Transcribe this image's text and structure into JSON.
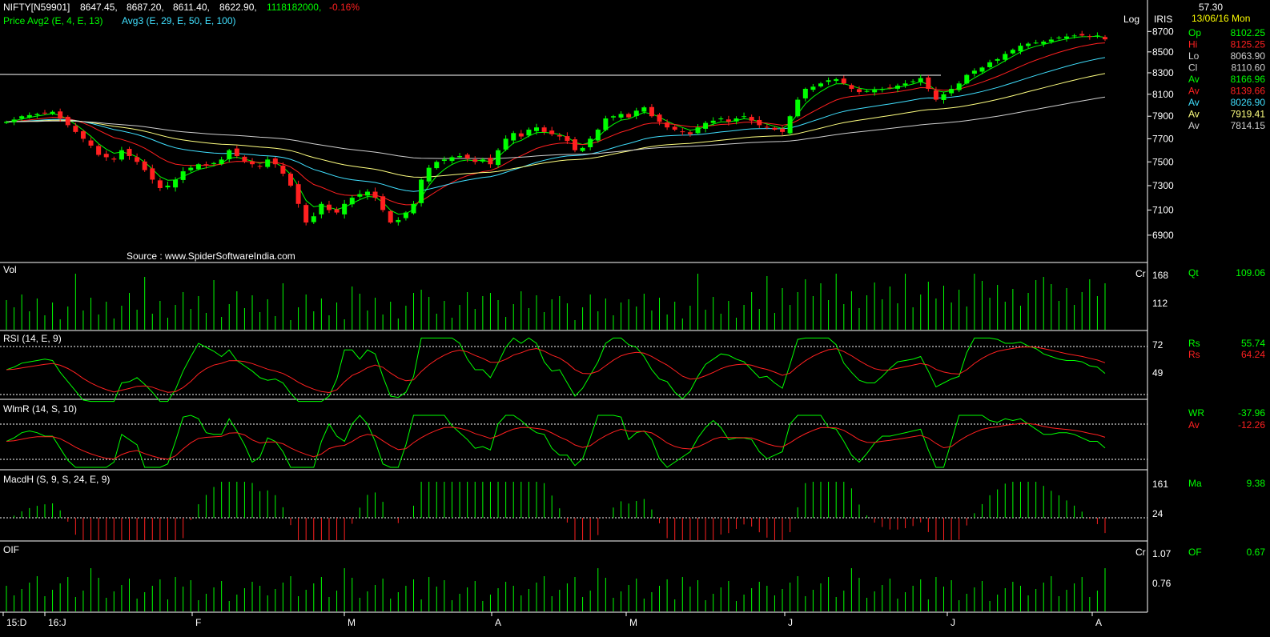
{
  "header": {
    "symbol": "NIFTY[N59901]",
    "open": "8647.45,",
    "high": "8687.20,",
    "low": "8611.40,",
    "close": "8622.90,",
    "volume": "1118182000,",
    "change": "-0.16%",
    "line2_prefix": "Price Avg2 (E, 4, E, 13)",
    "line2_suffix": "Avg3 (E, 29, E, 50, E, 100)",
    "log_label": "Log",
    "iris_label": "IRIS",
    "source": "Source : www.SpiderSoftwareIndia.com"
  },
  "sidebar": {
    "top_value": "57.30",
    "date": "13/06/16 Mon",
    "rows": [
      {
        "label": "Op",
        "value": "8102.25",
        "color": "#00ff00"
      },
      {
        "label": "Hi",
        "value": "8125.25",
        "color": "#ff2020"
      },
      {
        "label": "Lo",
        "value": "8063.90",
        "color": "#cfcfcf"
      },
      {
        "label": "Cl",
        "value": "8110.60",
        "color": "#cfcfcf"
      },
      {
        "label": "Av",
        "value": "8166.96",
        "color": "#00ff00"
      },
      {
        "label": "Av",
        "value": "8139.66",
        "color": "#ff2020"
      },
      {
        "label": "Av",
        "value": "8026.90",
        "color": "#40e0ff"
      },
      {
        "label": "Av",
        "value": "7919.41",
        "color": "#ffff80"
      },
      {
        "label": "Av",
        "value": "7814.15",
        "color": "#cfcfcf"
      }
    ],
    "vol": {
      "label": "Qt",
      "value": "109.06"
    },
    "rsi": [
      {
        "label": "Rs",
        "value": "55.74",
        "color": "#00ff00"
      },
      {
        "label": "Rs",
        "value": "64.24",
        "color": "#ff2020"
      }
    ],
    "wr": [
      {
        "label": "WR",
        "value": "-37.96",
        "color": "#00ff00"
      },
      {
        "label": "Av",
        "value": "-12.26",
        "color": "#ff2020"
      }
    ],
    "macd": {
      "label": "Ma",
      "value": "9.38"
    },
    "oif": {
      "label": "OF",
      "value": "0.67"
    }
  },
  "chart_data": {
    "type": "candlestick",
    "price_axis": {
      "ticks": [
        "8700",
        "8500",
        "8300",
        "8100",
        "7900",
        "7700",
        "7500",
        "7300",
        "7100",
        "6900"
      ],
      "scale": "log",
      "range": [
        6750,
        8750
      ]
    },
    "x_labels": [
      "15:D",
      "16:J",
      "F",
      "M",
      "A",
      "M",
      "J",
      "J",
      "A"
    ],
    "ohlc_closes": [
      7850,
      7870,
      7900,
      7910,
      7920,
      7930,
      7940,
      7880,
      7820,
      7760,
      7700,
      7640,
      7560,
      7540,
      7520,
      7600,
      7550,
      7500,
      7430,
      7350,
      7280,
      7300,
      7350,
      7420,
      7450,
      7480,
      7470,
      7490,
      7520,
      7600,
      7550,
      7500,
      7480,
      7460,
      7520,
      7480,
      7400,
      7300,
      7150,
      7000,
      7050,
      7150,
      7100,
      7080,
      7150,
      7200,
      7230,
      7250,
      7200,
      7100,
      7000,
      7020,
      7080,
      7150,
      7350,
      7450,
      7500,
      7520,
      7540,
      7550,
      7530,
      7500,
      7520,
      7480,
      7600,
      7700,
      7750,
      7720,
      7780,
      7800,
      7760,
      7740,
      7720,
      7680,
      7600,
      7620,
      7700,
      7780,
      7880,
      7900,
      7920,
      7890,
      7950,
      7980,
      7900,
      7850,
      7800,
      7780,
      7760,
      7740,
      7800,
      7840,
      7860,
      7880,
      7850,
      7880,
      7900,
      7860,
      7820,
      7800,
      7780,
      7760,
      7900,
      8050,
      8150,
      8170,
      8200,
      8230,
      8240,
      8200,
      8150,
      8120,
      8130,
      8140,
      8150,
      8160,
      8180,
      8200,
      8220,
      8250,
      8150,
      8050,
      8100,
      8150,
      8200,
      8280,
      8320,
      8350,
      8400,
      8430,
      8480,
      8520,
      8560,
      8580,
      8590,
      8600,
      8620,
      8640,
      8650,
      8660,
      8660,
      8650,
      8660,
      8622
    ],
    "volume_axis": {
      "ticks": [
        "168",
        "112"
      ],
      "unit": "Cr"
    },
    "rsi": {
      "name": "RSI (14, E, 9)",
      "ticks": [
        "72",
        "49"
      ]
    },
    "williams_r": {
      "name": "WlmR (14, S, 10)"
    },
    "macd": {
      "name": "MacdH (S, 9, S, 24, E, 9)",
      "ticks": [
        "161",
        "24"
      ]
    },
    "oif": {
      "name": "OIF",
      "ticks": [
        "1.07",
        "0.76"
      ],
      "unit": "Cr"
    },
    "panel_titles": [
      "Vol"
    ]
  }
}
